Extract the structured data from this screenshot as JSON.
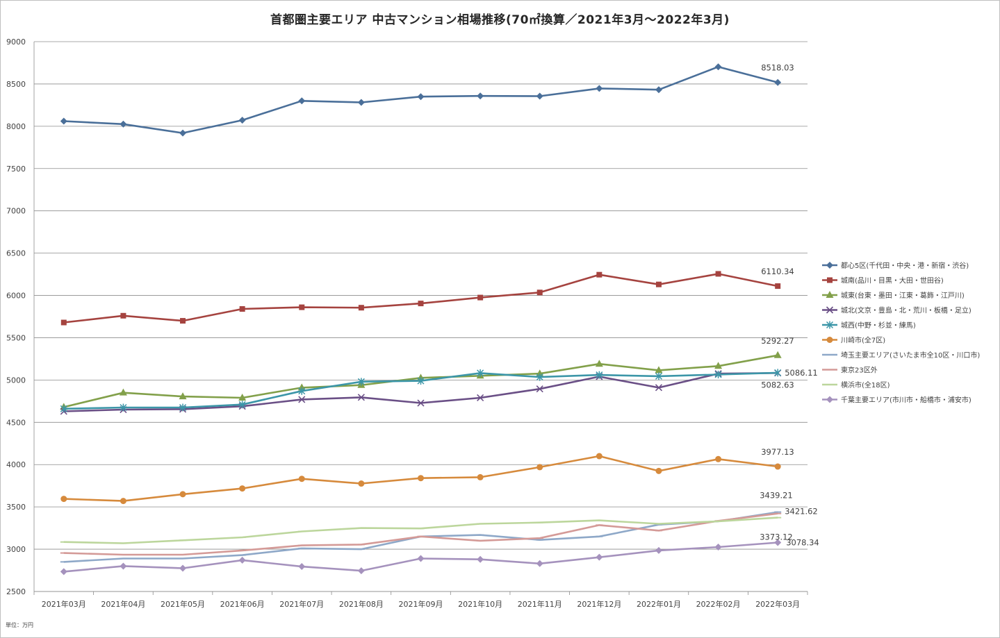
{
  "chart_data": {
    "type": "line",
    "title": "首都圏主要エリア 中古マンション相場推移(70㎡換算／2021年3月～2022年3月)",
    "unit_note": "単位：万円",
    "ylim": [
      2500,
      9000
    ],
    "yticks": [
      2500,
      3000,
      3500,
      4000,
      4500,
      5000,
      5500,
      6000,
      6500,
      7000,
      7500,
      8000,
      8500,
      9000
    ],
    "grid": true,
    "legend_position": "right",
    "categories": [
      "2021年03月",
      "2021年04月",
      "2021年05月",
      "2021年06月",
      "2021年07月",
      "2021年08月",
      "2021年09月",
      "2021年10月",
      "2021年11月",
      "2021年12月",
      "2022年01月",
      "2022年02月",
      "2022年03月"
    ],
    "series": [
      {
        "name": "都心5区(千代田・中央・港・新宿・渋谷)",
        "color": "#4a6f99",
        "marker": "diamond",
        "values": [
          8060,
          8025,
          7920,
          8072,
          8300,
          8282,
          8350,
          8358,
          8356,
          8447,
          8432,
          8703,
          8518.03
        ],
        "last_label": "8518.03"
      },
      {
        "name": "城南(品川・目黒・大田・世田谷)",
        "color": "#a5433f",
        "marker": "square",
        "values": [
          5680,
          5760,
          5700,
          5840,
          5860,
          5855,
          5905,
          5975,
          6035,
          6245,
          6130,
          6255,
          6110.34
        ],
        "last_label": "6110.34"
      },
      {
        "name": "城東(台東・墨田・江東・葛飾・江戸川)",
        "color": "#82a04a",
        "marker": "triangle",
        "values": [
          4680,
          4850,
          4805,
          4790,
          4910,
          4940,
          5025,
          5050,
          5075,
          5190,
          5115,
          5165,
          5292.27
        ],
        "last_label": "5292.27"
      },
      {
        "name": "城北(文京・豊島・北・荒川・板橋・足立)",
        "color": "#6a4f86",
        "marker": "x",
        "values": [
          4630,
          4650,
          4655,
          4690,
          4770,
          4795,
          4728,
          4790,
          4895,
          5040,
          4910,
          5075,
          5082.63
        ],
        "last_label": "5082.63"
      },
      {
        "name": "城西(中野・杉並・練馬)",
        "color": "#3c96a8",
        "marker": "asterisk",
        "values": [
          4660,
          4675,
          4675,
          4710,
          4870,
          4980,
          4990,
          5082,
          5035,
          5060,
          5045,
          5065,
          5086.11
        ],
        "last_label": "5086.11"
      },
      {
        "name": "川崎市(全7区)",
        "color": "#d68a3c",
        "marker": "circle",
        "values": [
          3595,
          3570,
          3650,
          3718,
          3832,
          3776,
          3840,
          3851,
          3970,
          4100,
          3925,
          4065,
          3977.13
        ],
        "last_label": "3977.13"
      },
      {
        "name": "埼玉主要エリア(さいたま市全10区・川口市)",
        "color": "#8ea8c8",
        "marker": "dash",
        "values": [
          2850,
          2890,
          2890,
          2930,
          3010,
          3000,
          3150,
          3168,
          3110,
          3150,
          3290,
          3330,
          3439.21
        ],
        "last_label": "3439.21"
      },
      {
        "name": "東京23区外",
        "color": "#d49a97",
        "marker": "dash",
        "values": [
          2955,
          2935,
          2935,
          2985,
          3045,
          3055,
          3150,
          3100,
          3130,
          3285,
          3220,
          3335,
          3421.62
        ],
        "last_label": "3421.62"
      },
      {
        "name": "横浜市(全18区)",
        "color": "#bcd69c",
        "marker": "dash",
        "values": [
          3085,
          3070,
          3105,
          3140,
          3210,
          3250,
          3245,
          3300,
          3315,
          3340,
          3300,
          3330,
          3373.12
        ],
        "last_label": "3373.12"
      },
      {
        "name": "千葉主要エリア(市川市・船橋市・浦安市)",
        "color": "#a592bd",
        "marker": "diamond",
        "values": [
          2735,
          2800,
          2775,
          2870,
          2795,
          2745,
          2890,
          2880,
          2830,
          2905,
          2985,
          3025,
          3078.34
        ],
        "last_label": "3078.34"
      }
    ]
  }
}
